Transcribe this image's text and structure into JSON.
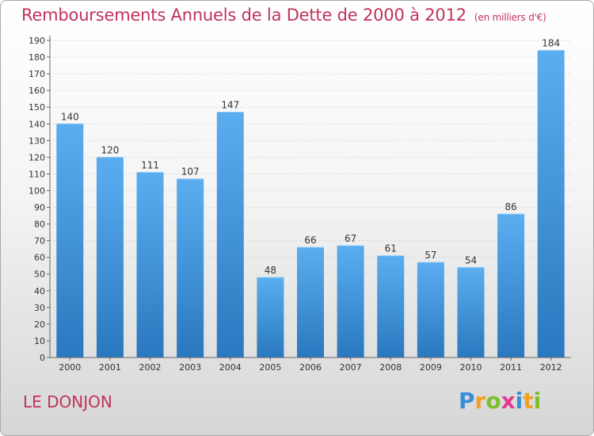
{
  "title": "Remboursements Annuels de la Dette de 2000 à 2012",
  "unit": "(en milliers d'€)",
  "commune": "LE DONJON",
  "logo": {
    "letters": [
      "P",
      "r",
      "o",
      "x",
      "i",
      "t",
      "i"
    ],
    "colors": [
      "#3a8ed8",
      "#f2a021",
      "#7bbf2a",
      "#e03a8e",
      "#3a8ed8",
      "#f2a021",
      "#7bbf2a"
    ]
  },
  "chart_data": {
    "type": "bar",
    "title": "Remboursements Annuels de la Dette de 2000 à 2012",
    "categories": [
      "2000",
      "2001",
      "2002",
      "2003",
      "2004",
      "2005",
      "2006",
      "2007",
      "2008",
      "2009",
      "2010",
      "2011",
      "2012"
    ],
    "values": [
      140,
      120,
      111,
      107,
      147,
      48,
      66,
      67,
      61,
      57,
      54,
      86,
      184
    ],
    "ylim": [
      0,
      190
    ],
    "yticks": [
      0,
      10,
      20,
      30,
      40,
      50,
      60,
      70,
      80,
      90,
      100,
      110,
      120,
      130,
      140,
      150,
      160,
      170,
      180,
      190
    ],
    "grid": true,
    "bar_color_top": "#5aaef0",
    "bar_color_bottom": "#2a78bf"
  }
}
